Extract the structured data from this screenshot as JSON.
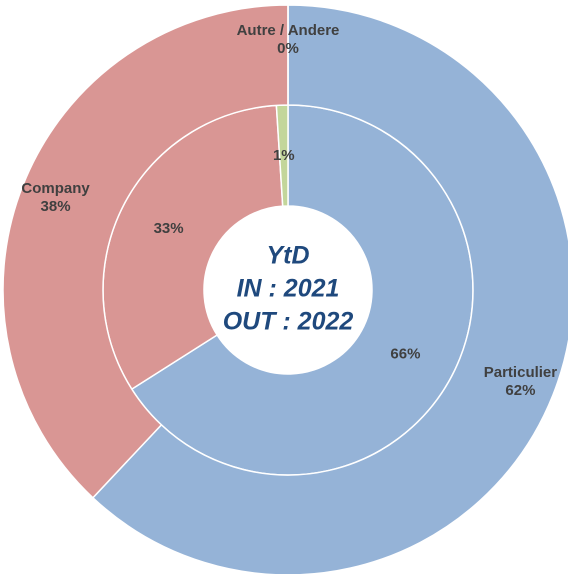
{
  "chart_data": {
    "type": "donut",
    "title": "YtD",
    "subtitle": [
      "IN : 2021",
      "OUT : 2022"
    ],
    "categories": [
      "Particulier",
      "Company",
      "Autre / Andere"
    ],
    "colors": [
      "#95b3d7",
      "#d99694",
      "#c3d69b"
    ],
    "series": [
      {
        "values": [
          66,
          33,
          1
        ],
        "value_labels": [
          "66%",
          "33%",
          "1%"
        ]
      },
      {
        "values": [
          62,
          38,
          0
        ],
        "value_labels": [
          "62%",
          "38%",
          "0%"
        ]
      }
    ]
  }
}
